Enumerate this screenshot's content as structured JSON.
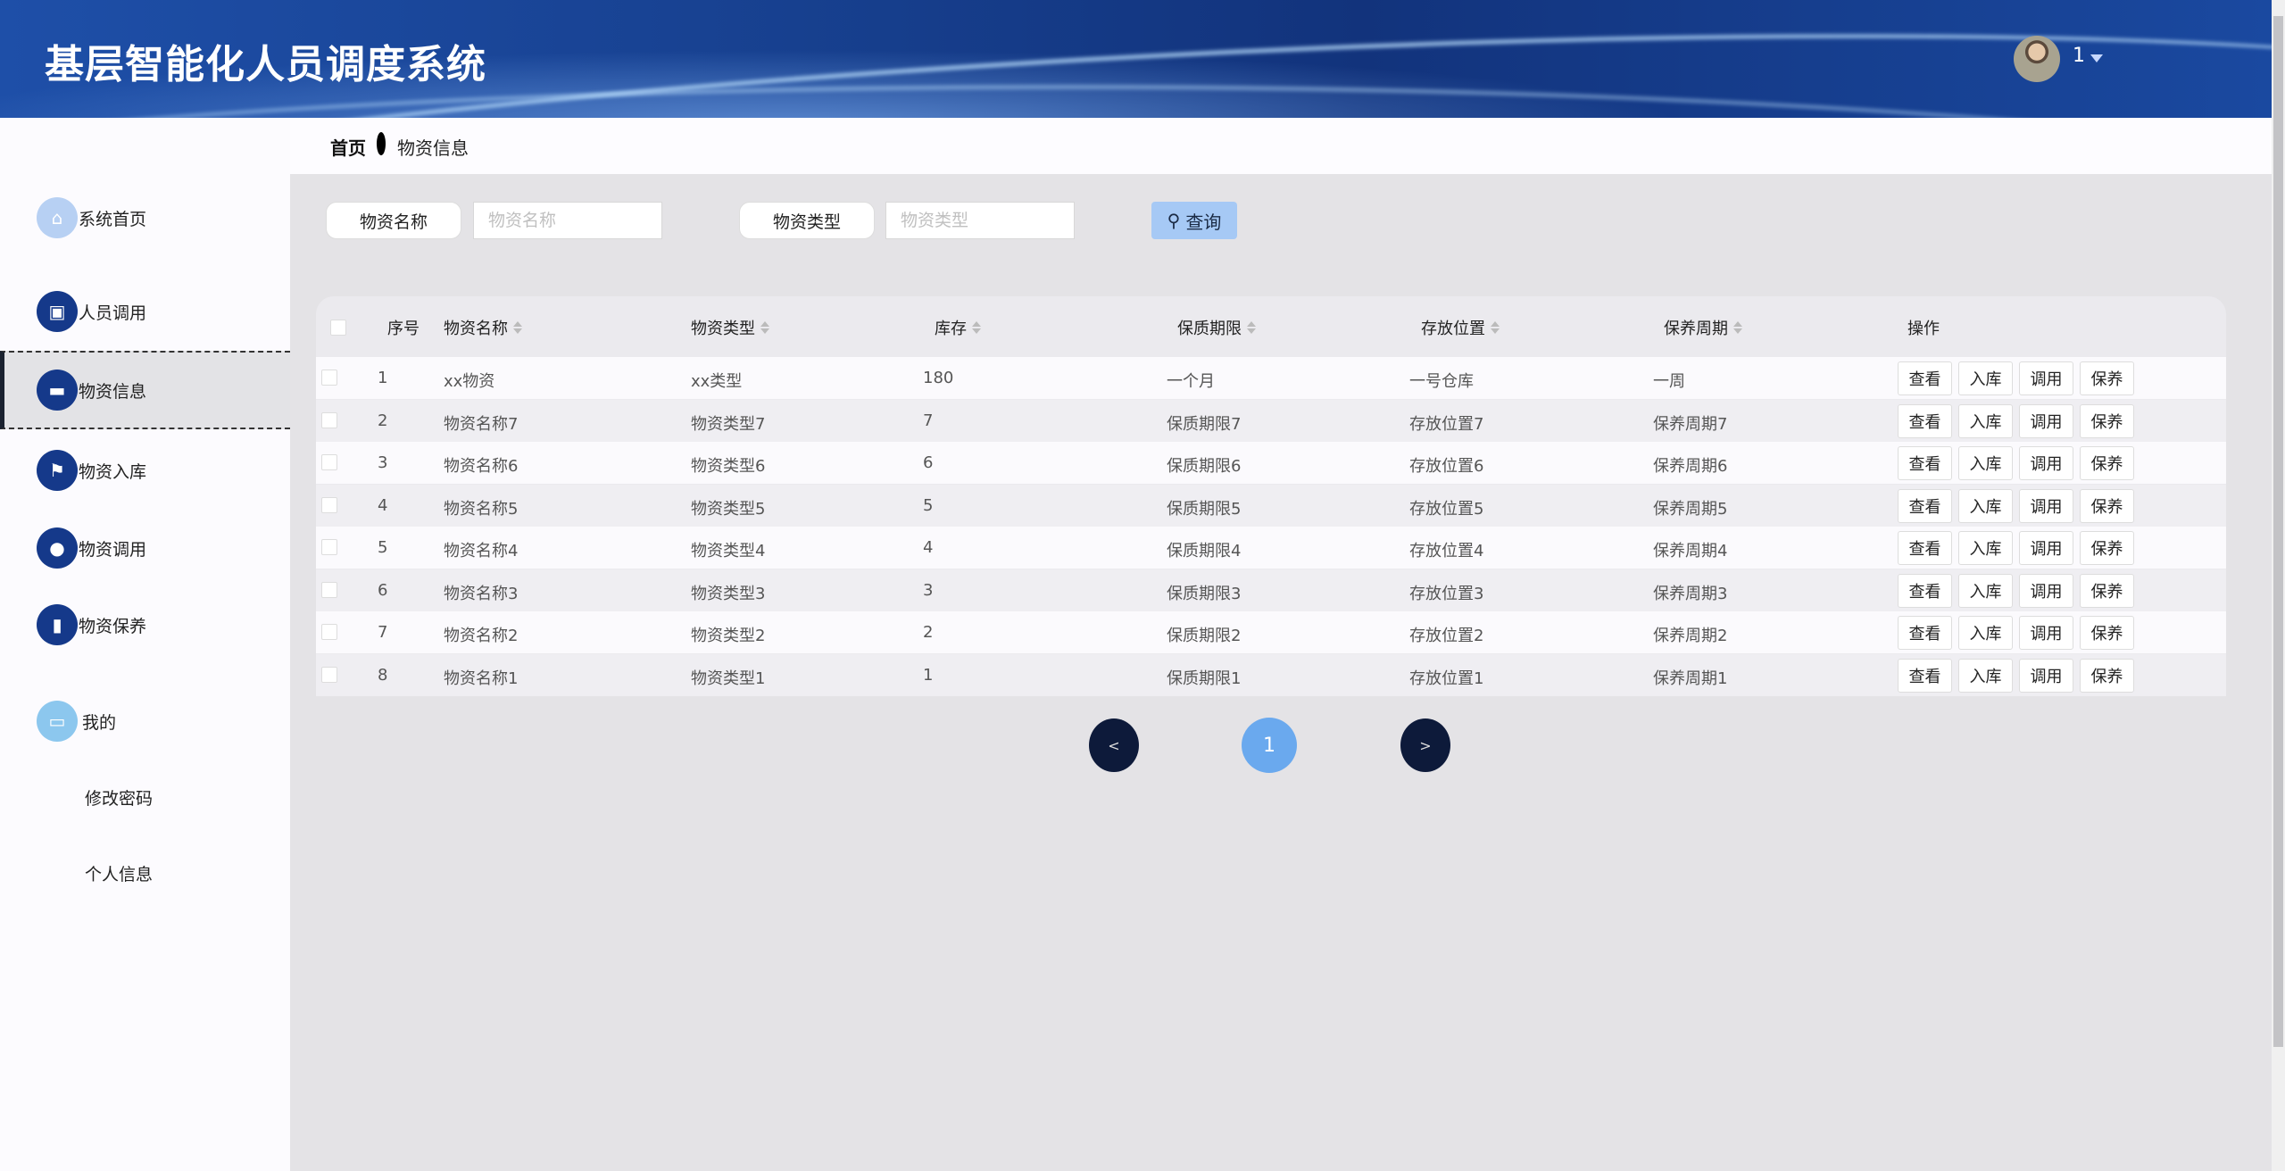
{
  "header": {
    "title": "基层智能化人员调度系统",
    "username": "1"
  },
  "colors": {
    "accent": "#15398a",
    "active_page": "#6aa9ee",
    "query_button": "#a6c9f5"
  },
  "sidebar": {
    "items": [
      {
        "label": "系统首页",
        "icon": "home-icon"
      },
      {
        "label": "人员调用",
        "icon": "clipboard-icon"
      },
      {
        "label": "物资信息",
        "icon": "monitor-icon",
        "active": true
      },
      {
        "label": "物资入库",
        "icon": "flag-icon"
      },
      {
        "label": "物资调用",
        "icon": "user-icon"
      },
      {
        "label": "物资保养",
        "icon": "book-icon"
      },
      {
        "label": "我的",
        "icon": "card-icon"
      }
    ],
    "sub_items": [
      "修改密码",
      "个人信息"
    ]
  },
  "breadcrumb": {
    "home": "首页",
    "current": "物资信息"
  },
  "search": {
    "name_label": "物资名称",
    "name_placeholder": "物资名称",
    "name_value": "",
    "type_label": "物资类型",
    "type_placeholder": "物资类型",
    "type_value": "",
    "query_label": "查询"
  },
  "table": {
    "columns": [
      "序号",
      "物资名称",
      "物资类型",
      "库存",
      "保质期限",
      "存放位置",
      "保养周期",
      "操作"
    ],
    "rows": [
      [
        "1",
        "xx物资",
        "xx类型",
        "180",
        "一个月",
        "一号仓库",
        "一周"
      ],
      [
        "2",
        "物资名称7",
        "物资类型7",
        "7",
        "保质期限7",
        "存放位置7",
        "保养周期7"
      ],
      [
        "3",
        "物资名称6",
        "物资类型6",
        "6",
        "保质期限6",
        "存放位置6",
        "保养周期6"
      ],
      [
        "4",
        "物资名称5",
        "物资类型5",
        "5",
        "保质期限5",
        "存放位置5",
        "保养周期5"
      ],
      [
        "5",
        "物资名称4",
        "物资类型4",
        "4",
        "保质期限4",
        "存放位置4",
        "保养周期4"
      ],
      [
        "6",
        "物资名称3",
        "物资类型3",
        "3",
        "保质期限3",
        "存放位置3",
        "保养周期3"
      ],
      [
        "7",
        "物资名称2",
        "物资类型2",
        "2",
        "保质期限2",
        "存放位置2",
        "保养周期2"
      ],
      [
        "8",
        "物资名称1",
        "物资类型1",
        "1",
        "保质期限1",
        "存放位置1",
        "保养周期1"
      ]
    ],
    "actions": [
      "查看",
      "入库",
      "调用",
      "保养"
    ]
  },
  "pagination": {
    "prev": "<",
    "current": "1",
    "next": ">"
  }
}
